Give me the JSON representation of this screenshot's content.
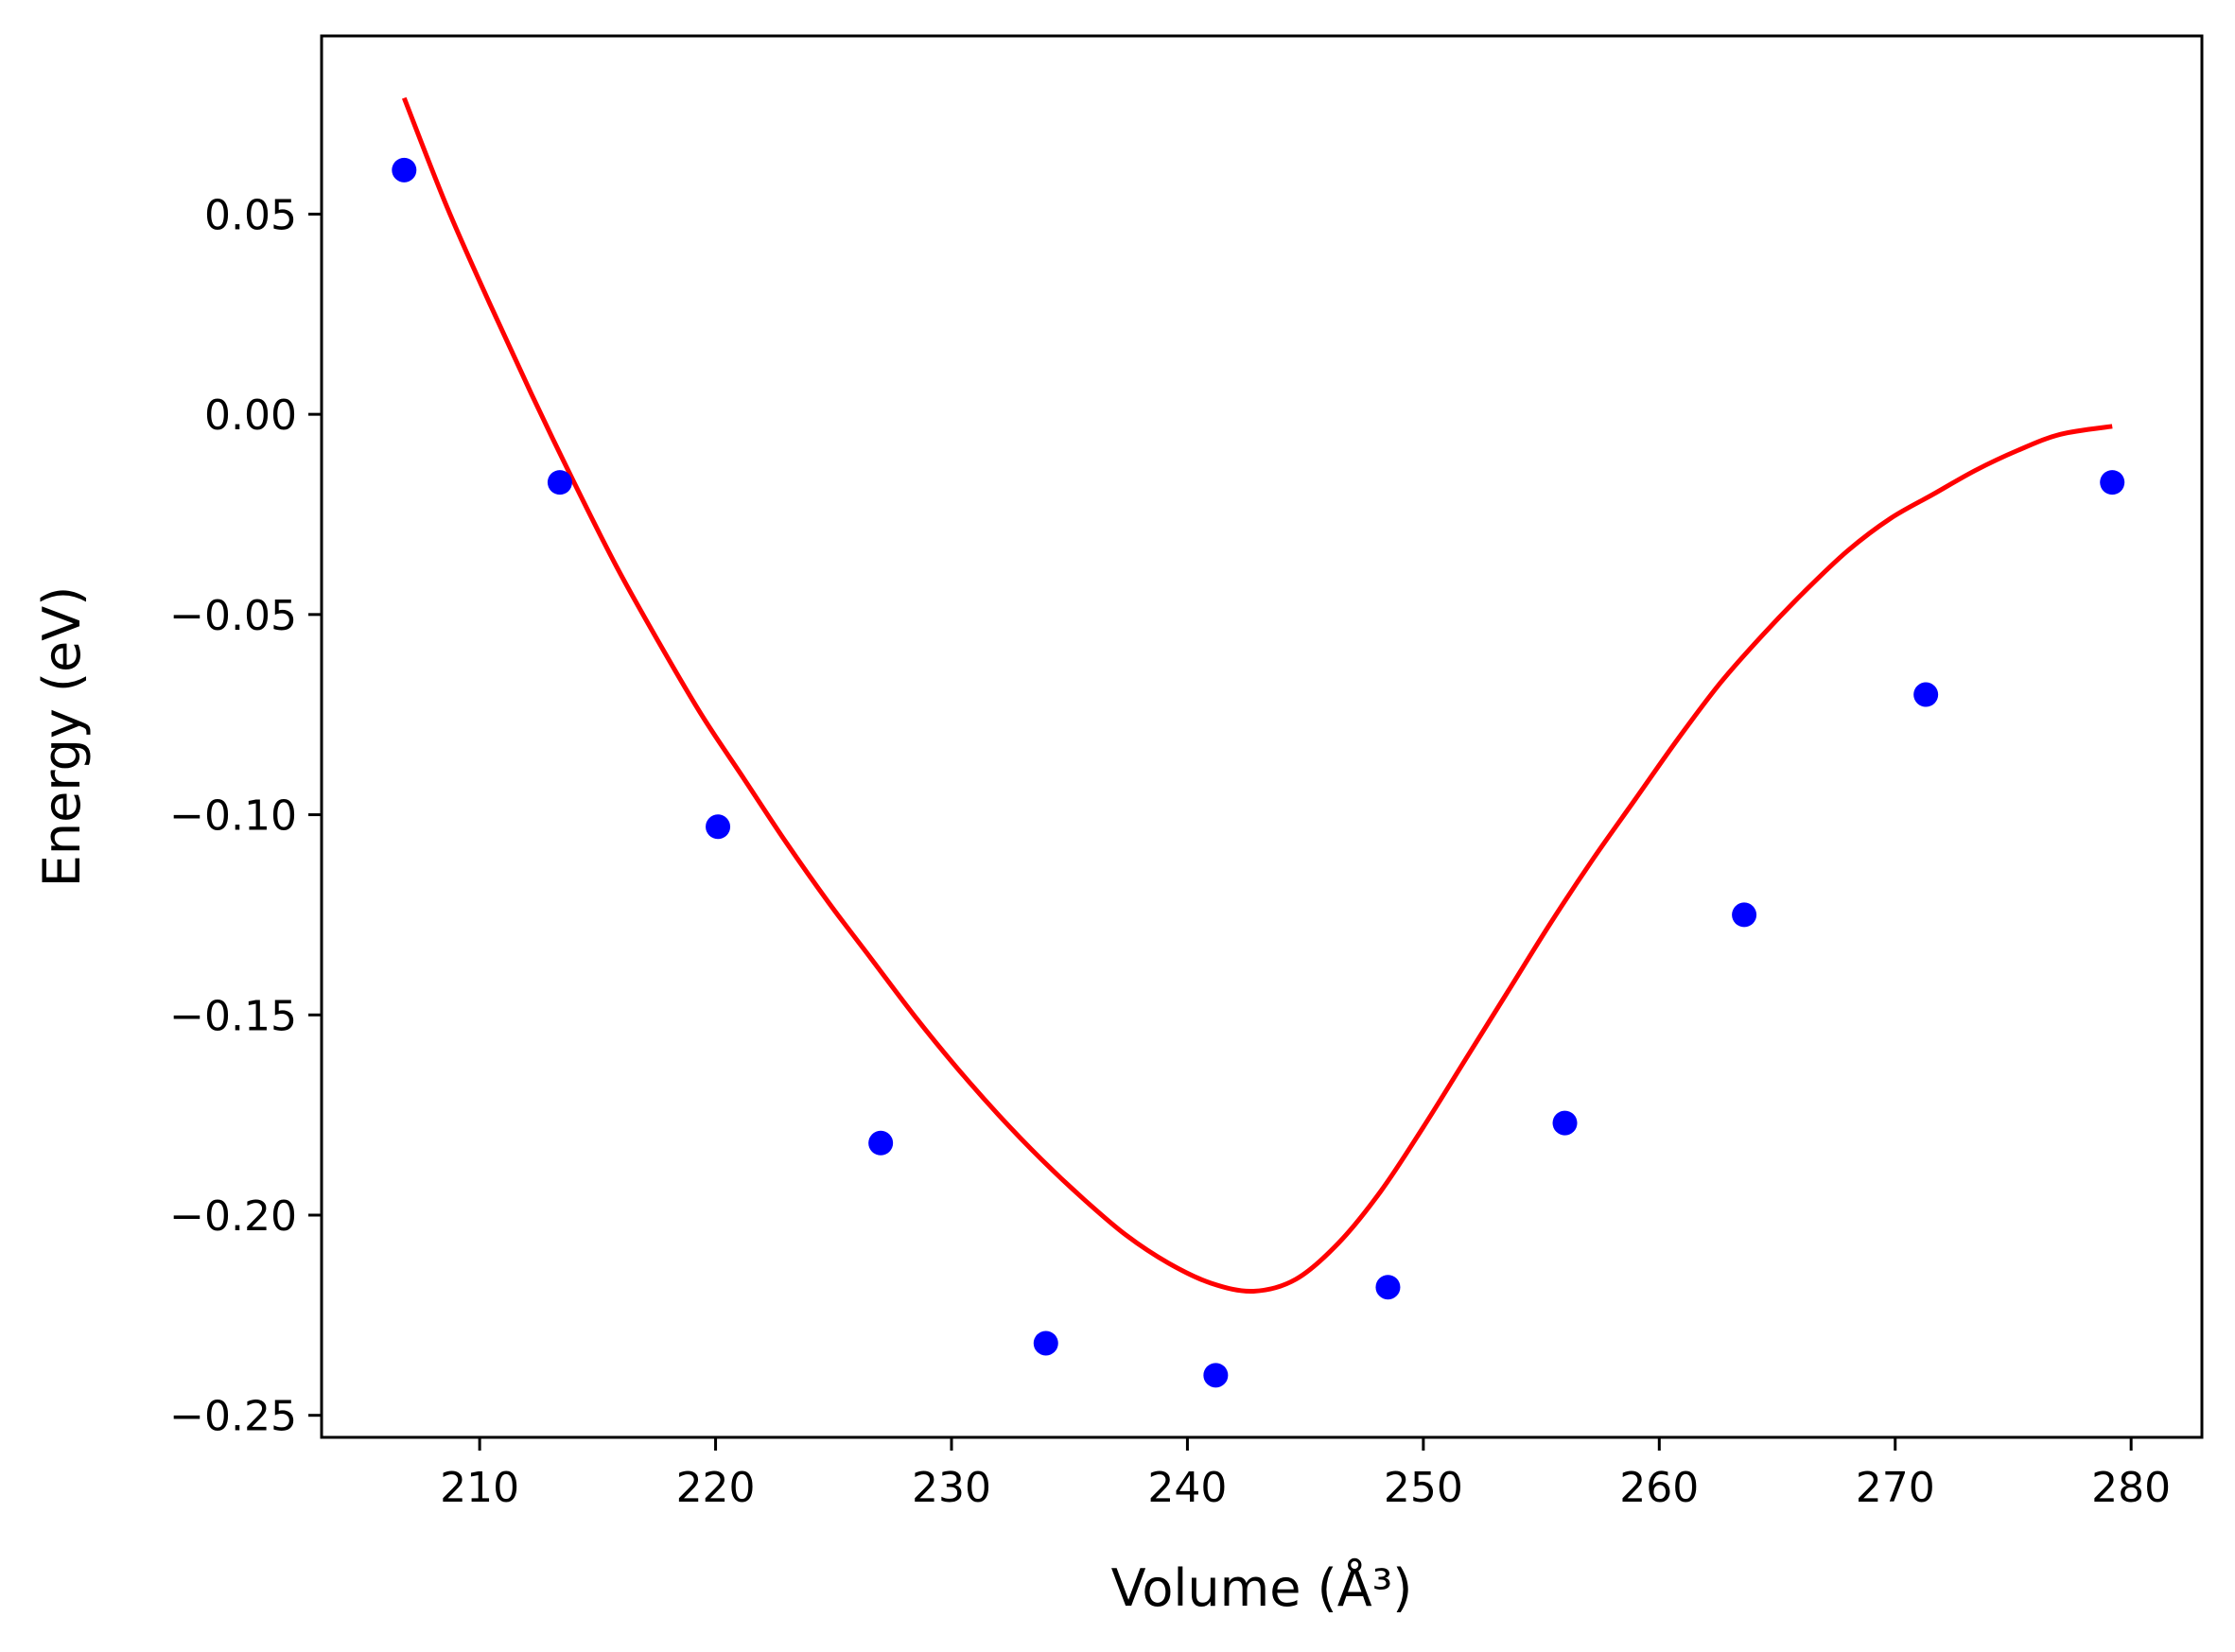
{
  "chart_data": {
    "type": "scatter",
    "title": "",
    "xlabel": "Volume (Å³)",
    "ylabel": "Energy (eV)",
    "xlim": [
      203.3,
      283.0
    ],
    "ylim": [
      -0.2555,
      0.0945
    ],
    "x_ticks": [
      210,
      220,
      230,
      240,
      250,
      260,
      270,
      280
    ],
    "x_tick_labels": [
      "210",
      "220",
      "230",
      "240",
      "250",
      "260",
      "270",
      "280"
    ],
    "y_ticks": [
      0.05,
      0.0,
      -0.05,
      -0.1,
      -0.15,
      -0.2,
      -0.25
    ],
    "y_tick_labels": [
      "0.05",
      "0.00",
      "−0.05",
      "−0.10",
      "−0.15",
      "−0.20",
      "−0.25"
    ],
    "grid": false,
    "legend": "none",
    "series": [
      {
        "kind": "scatter",
        "color": "#0000ff",
        "x": [
          206.8,
          213.4,
          220.1,
          227.0,
          234.0,
          241.2,
          248.5,
          256.0,
          263.6,
          271.3,
          279.2
        ],
        "y": [
          0.061,
          -0.017,
          -0.103,
          -0.182,
          -0.232,
          -0.24,
          -0.218,
          -0.177,
          -0.125,
          -0.07,
          -0.017
        ]
      },
      {
        "kind": "line",
        "color": "#ff0000",
        "x": [
          206.8,
          208.6,
          210.4,
          212.2,
          214.0,
          215.8,
          217.6,
          219.4,
          221.2,
          223.0,
          224.8,
          226.6,
          228.4,
          230.2,
          232.0,
          233.8,
          235.6,
          237.4,
          239.2,
          241.0,
          242.8,
          244.6,
          246.4,
          248.2,
          250.0,
          251.8,
          253.6,
          255.4,
          257.2,
          259.0,
          260.8,
          262.6,
          264.4,
          266.2,
          268.0,
          269.8,
          271.6,
          273.4,
          275.2,
          277.0,
          279.2
        ],
        "y": [
          0.079,
          0.052,
          0.028,
          0.005,
          -0.017,
          -0.038,
          -0.057,
          -0.075,
          -0.091,
          -0.107,
          -0.122,
          -0.136,
          -0.15,
          -0.163,
          -0.175,
          -0.186,
          -0.196,
          -0.205,
          -0.212,
          -0.217,
          -0.219,
          -0.216,
          -0.207,
          -0.194,
          -0.178,
          -0.161,
          -0.144,
          -0.127,
          -0.111,
          -0.096,
          -0.081,
          -0.067,
          -0.055,
          -0.044,
          -0.034,
          -0.026,
          -0.02,
          -0.014,
          -0.009,
          -0.005,
          -0.003
        ]
      }
    ]
  }
}
